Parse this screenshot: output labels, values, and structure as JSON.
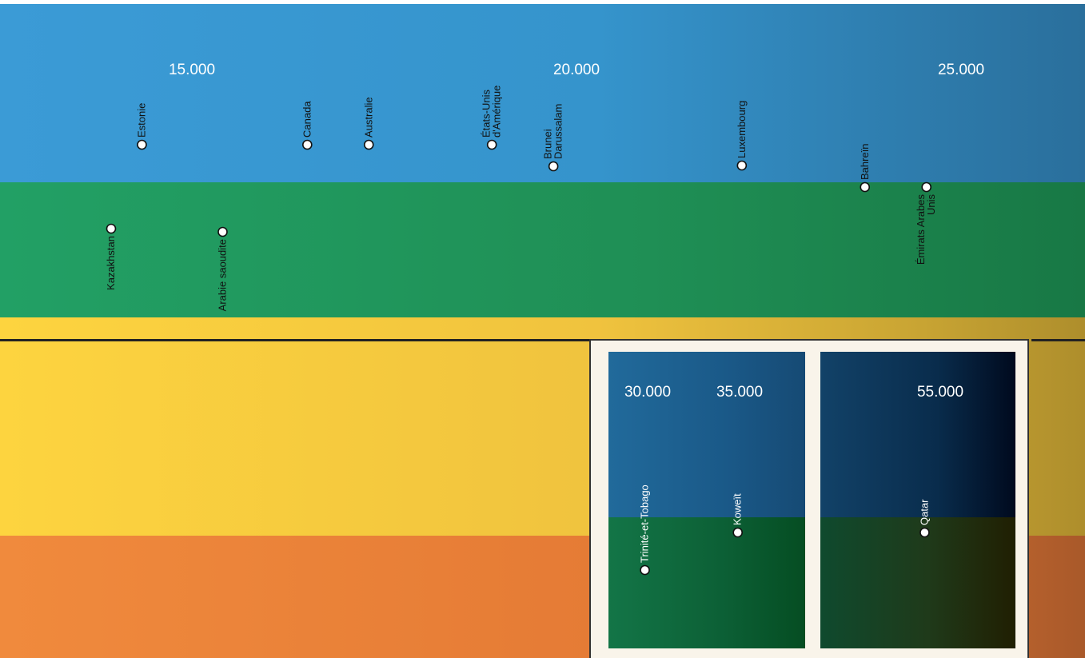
{
  "chart_data": {
    "type": "scatter",
    "title": "",
    "xlabel": "",
    "ylabel": "",
    "x_unit": "",
    "main_axis": {
      "ticks": [
        {
          "value": 15000,
          "label": "15.000"
        },
        {
          "value": 20000,
          "label": "20.000"
        },
        {
          "value": 25000,
          "label": "25.000"
        }
      ]
    },
    "inset_axis": {
      "ticks": [
        {
          "value": 30000,
          "label": "30.000"
        },
        {
          "value": 35000,
          "label": "35.000"
        },
        {
          "value": 55000,
          "label": "55.000"
        }
      ]
    },
    "bands": [
      {
        "key": "blue",
        "color": "#3594cc"
      },
      {
        "key": "green",
        "color": "#1f8f55"
      },
      {
        "key": "yellow",
        "color": "#f0c33e"
      },
      {
        "key": "orange",
        "color": "#e57b35"
      }
    ],
    "points": [
      {
        "band": "blue",
        "x": 14350,
        "label": [
          "Estonie"
        ],
        "label_side": "above"
      },
      {
        "band": "blue",
        "x": 16500,
        "label": [
          "Canada"
        ],
        "label_side": "above"
      },
      {
        "band": "blue",
        "x": 17300,
        "label": [
          "Australie"
        ],
        "label_side": "above"
      },
      {
        "band": "blue",
        "x": 18900,
        "label": [
          "États-Unis",
          "d'Amérique"
        ],
        "label_side": "above"
      },
      {
        "band": "blue",
        "x": 19700,
        "label": [
          "Brunei",
          "Darussalam"
        ],
        "label_side": "above"
      },
      {
        "band": "blue",
        "x": 22150,
        "label": [
          "Luxembourg"
        ],
        "label_side": "above"
      },
      {
        "band": "blue",
        "x": 23750,
        "label": [
          "Bahreïn"
        ],
        "label_side": "above"
      },
      {
        "band": "green",
        "x": 13950,
        "label": [
          "Kazakhstan"
        ],
        "label_side": "below"
      },
      {
        "band": "green",
        "x": 15400,
        "label": [
          "Arabie saoudite"
        ],
        "label_side": "below"
      },
      {
        "band": "green",
        "x": 24550,
        "label": [
          "Émirats Arabes",
          "Unis"
        ],
        "label_side": "below"
      },
      {
        "band": "inset",
        "x": 29850,
        "label": [
          "Trinité-et-Tobago"
        ],
        "label_side": "above"
      },
      {
        "band": "inset",
        "x": 34900,
        "label": [
          "Koweït"
        ],
        "label_side": "above"
      },
      {
        "band": "inset",
        "x": 54150,
        "label": [
          "Qatar"
        ],
        "label_side": "above"
      }
    ]
  }
}
